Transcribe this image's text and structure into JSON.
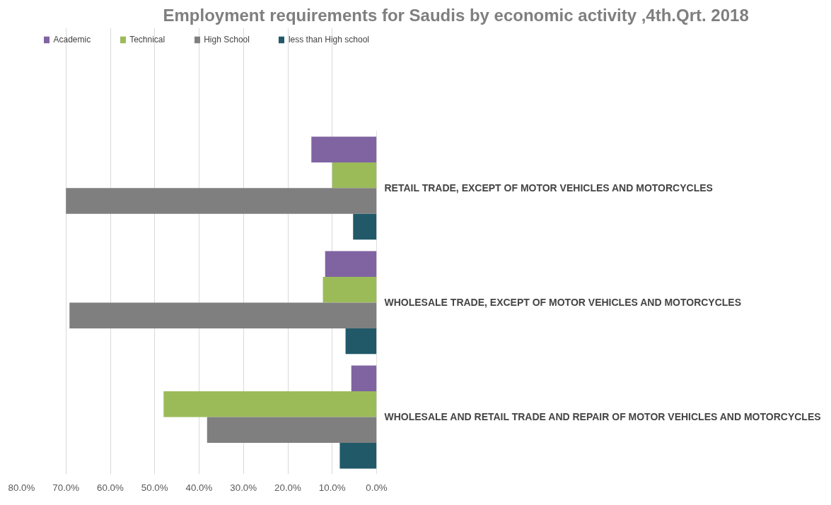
{
  "chart_data": {
    "type": "bar",
    "orientation": "horizontal",
    "title": "Employment requirements for Saudis by economic activity ,4th.Qrt. 2018",
    "categories": [
      "RETAIL TRADE, EXCEPT OF MOTOR VEHICLES AND MOTORCYCLES",
      "WHOLESALE TRADE, EXCEPT OF MOTOR VEHICLES AND MOTORCYCLES",
      "WHOLESALE AND RETAIL TRADE AND REPAIR OF MOTOR VEHICLES AND MOTORCYCLES"
    ],
    "series": [
      {
        "name": "Academic",
        "color": "#8064a2",
        "values": [
          14.7,
          11.6,
          5.7
        ]
      },
      {
        "name": "Technical",
        "color": "#9bbb59",
        "values": [
          10.0,
          12.1,
          48.0
        ]
      },
      {
        "name": "High School",
        "color": "#7f7f7f",
        "values": [
          70.0,
          69.2,
          38.2
        ]
      },
      {
        "name": "less than High school",
        "color": "#215968",
        "values": [
          5.3,
          7.0,
          8.3
        ]
      }
    ],
    "xlim": [
      80,
      0
    ],
    "xticks": [
      {
        "value": 80,
        "label": "80.0%"
      },
      {
        "value": 70,
        "label": "70.0%"
      },
      {
        "value": 60,
        "label": "60.0%"
      },
      {
        "value": 50,
        "label": "50.0%"
      },
      {
        "value": 40,
        "label": "40.0%"
      },
      {
        "value": 30,
        "label": "30.0%"
      },
      {
        "value": 20,
        "label": "20.0%"
      },
      {
        "value": 10,
        "label": "10.0%"
      },
      {
        "value": 0,
        "label": "0.0%"
      }
    ],
    "grid": "x",
    "legend": "top right"
  }
}
